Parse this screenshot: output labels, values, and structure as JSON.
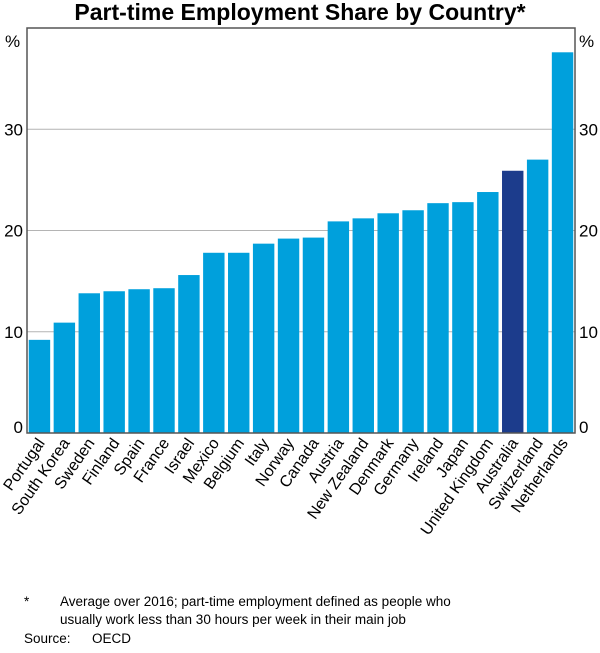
{
  "chart_data": {
    "type": "bar",
    "title": "Part-time Employment Share by Country*",
    "ylabel_left": "%",
    "ylabel_right": "%",
    "ylim": [
      0,
      40
    ],
    "yticks": [
      0,
      10,
      20,
      30
    ],
    "grid": true,
    "categories": [
      "Portugal",
      "South Korea",
      "Sweden",
      "Finland",
      "Spain",
      "France",
      "Israel",
      "Mexico",
      "Belgium",
      "Italy",
      "Norway",
      "Canada",
      "Austria",
      "New Zealand",
      "Denmark",
      "Germany",
      "Ireland",
      "Japan",
      "United Kingdom",
      "Australia",
      "Switzerland",
      "Netherlands"
    ],
    "values": [
      9.2,
      10.9,
      13.8,
      14.0,
      14.2,
      14.3,
      15.6,
      17.8,
      17.8,
      18.7,
      19.2,
      19.3,
      20.9,
      21.2,
      21.7,
      22.0,
      22.7,
      22.8,
      23.8,
      25.9,
      27.0,
      37.6
    ],
    "highlight": "Australia",
    "colors": {
      "bar": "#00a0dc",
      "highlight": "#1c3c8c",
      "grid": "#b4b4b4"
    }
  },
  "footnote": {
    "marker": "*",
    "line1": "Average over 2016; part-time employment defined as people who",
    "line2": "usually work less than 30 hours per week in their main job",
    "source_label": "Source:",
    "source": "OECD"
  }
}
